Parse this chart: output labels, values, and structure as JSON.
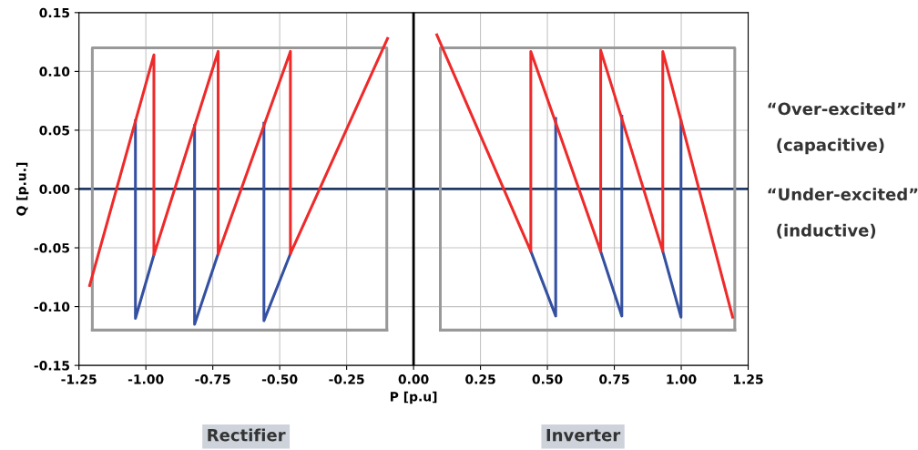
{
  "chart_data": {
    "type": "line",
    "xlabel": "P [p.u]",
    "ylabel": "Q [p.u.]",
    "xlim": [
      -1.25,
      1.25
    ],
    "xticks": [
      {
        "value": -1.25,
        "label": "-1.25"
      },
      {
        "value": -1.0,
        "label": "-1.00"
      },
      {
        "value": -0.75,
        "label": "-0.75"
      },
      {
        "value": -0.5,
        "label": "-0.50"
      },
      {
        "value": -0.25,
        "label": "-0.25"
      },
      {
        "value": 0,
        "label": "0.00"
      },
      {
        "value": 0.25,
        "label": "0.25"
      },
      {
        "value": 0.5,
        "label": "0.50"
      },
      {
        "value": 0.75,
        "label": "0.75"
      },
      {
        "value": 1.0,
        "label": "1.00"
      },
      {
        "value": 1.25,
        "label": "1.25"
      }
    ],
    "ylim": [
      -0.15,
      0.15
    ],
    "yticks": [
      {
        "value": -0.15,
        "label": "-0.15"
      },
      {
        "value": -0.1,
        "label": "-0.10"
      },
      {
        "value": -0.05,
        "label": "-0.05"
      },
      {
        "value": 0,
        "label": "0.00"
      },
      {
        "value": 0.05,
        "label": "0.05"
      },
      {
        "value": 0.1,
        "label": "0.10"
      },
      {
        "value": 0.15,
        "label": "0.15"
      }
    ],
    "grid": true,
    "series": [
      {
        "color": "#999999",
        "x": [
          -1.2,
          -1.2,
          -0.1,
          -0.1
        ],
        "values": [
          -0.12,
          0.12,
          0.12,
          -0.12
        ]
      },
      {
        "color": "#999999",
        "x": [
          -1.2,
          -0.1
        ],
        "values": [
          -0.12,
          -0.12
        ]
      },
      {
        "color": "#999999",
        "x": [
          0.1,
          0.1,
          1.2,
          1.2
        ],
        "values": [
          -0.12,
          0.12,
          0.12,
          -0.12
        ]
      },
      {
        "color": "#999999",
        "x": [
          0.1,
          1.2
        ],
        "values": [
          -0.12,
          -0.12
        ]
      },
      {
        "color": "#3450a0",
        "x": [
          -1.039,
          -1.039,
          -0.97,
          null,
          -0.818,
          -0.818,
          -0.73,
          null,
          -0.559,
          -0.559,
          -0.46,
          null,
          0.438,
          0.531,
          0.531,
          null,
          0.699,
          0.778,
          0.778,
          null,
          0.931,
          0.999,
          0.999
        ],
        "values": [
          0.058,
          -0.11,
          -0.056,
          null,
          0.054,
          -0.115,
          -0.055,
          null,
          0.056,
          -0.112,
          -0.055,
          null,
          -0.053,
          -0.108,
          0.06,
          null,
          -0.053,
          -0.108,
          0.062,
          null,
          -0.053,
          -0.109,
          0.058
        ]
      },
      {
        "color": "#ee2a2a",
        "x": [
          -1.21,
          -0.97,
          -0.97,
          -0.73,
          -0.73,
          -0.46,
          -0.46,
          -0.097,
          null,
          0.087,
          0.438,
          0.438,
          0.699,
          0.699,
          0.931,
          0.931,
          1.192
        ],
        "values": [
          -0.082,
          0.114,
          -0.056,
          0.117,
          -0.055,
          0.117,
          -0.055,
          0.128,
          null,
          0.131,
          -0.053,
          0.117,
          -0.053,
          0.118,
          -0.053,
          0.117,
          -0.109
        ]
      }
    ],
    "ref_lines": [
      {
        "axis": "x",
        "value": 0,
        "color": "#000000"
      },
      {
        "axis": "y",
        "value": 0,
        "color": "#1f3864"
      }
    ],
    "annotations": [
      "“Over-excited”",
      "(capacitive)",
      "“Under-excited”",
      "(inductive)",
      "Rectifier",
      "Inverter"
    ]
  }
}
